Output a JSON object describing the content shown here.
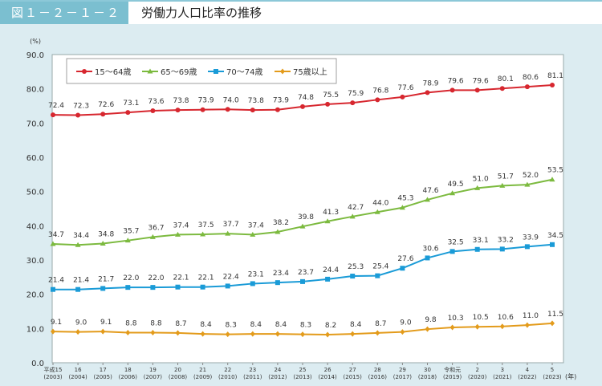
{
  "header": {
    "figure_number": "図１－２－１－２",
    "title": "労働力人口比率の推移"
  },
  "chart_data": {
    "type": "line",
    "title": "労働力人口比率の推移",
    "ylabel": "(%)",
    "xlabel": "(年)",
    "ylim": [
      0,
      90
    ],
    "yticks": [
      "0.0",
      "10.0",
      "20.0",
      "30.0",
      "40.0",
      "50.0",
      "60.0",
      "70.0",
      "80.0",
      "90.0"
    ],
    "grid": false,
    "legend": "top-left",
    "categories": [
      [
        "平成15",
        "(2003)"
      ],
      [
        "16",
        "(2004)"
      ],
      [
        "17",
        "(2005)"
      ],
      [
        "18",
        "(2006)"
      ],
      [
        "19",
        "(2007)"
      ],
      [
        "20",
        "(2008)"
      ],
      [
        "21",
        "(2009)"
      ],
      [
        "22",
        "(2010)"
      ],
      [
        "23",
        "(2011)"
      ],
      [
        "24",
        "(2012)"
      ],
      [
        "25",
        "(2013)"
      ],
      [
        "26",
        "(2014)"
      ],
      [
        "27",
        "(2015)"
      ],
      [
        "28",
        "(2016)"
      ],
      [
        "29",
        "(2017)"
      ],
      [
        "30",
        "(2018)"
      ],
      [
        "令和元",
        "(2019)"
      ],
      [
        "2",
        "(2020)"
      ],
      [
        "3",
        "(2021)"
      ],
      [
        "4",
        "(2022)"
      ],
      [
        "5",
        "(2023)"
      ]
    ],
    "series": [
      {
        "name": "15～64歳",
        "color": "#d7272f",
        "marker": "circle",
        "values": [
          72.4,
          72.3,
          72.6,
          73.1,
          73.6,
          73.8,
          73.9,
          74.0,
          73.8,
          73.9,
          74.8,
          75.5,
          75.9,
          76.8,
          77.6,
          78.9,
          79.6,
          79.6,
          80.1,
          80.6,
          81.1
        ]
      },
      {
        "name": "65～69歳",
        "color": "#7cba3f",
        "marker": "triangle",
        "values": [
          34.7,
          34.4,
          34.8,
          35.7,
          36.7,
          37.4,
          37.5,
          37.7,
          37.4,
          38.2,
          39.8,
          41.3,
          42.7,
          44.0,
          45.3,
          47.6,
          49.5,
          51.0,
          51.7,
          52.0,
          53.5
        ]
      },
      {
        "name": "70～74歳",
        "color": "#1a9bd7",
        "marker": "square",
        "values": [
          21.4,
          21.4,
          21.7,
          22.0,
          22.0,
          22.1,
          22.1,
          22.4,
          23.1,
          23.4,
          23.7,
          24.4,
          25.3,
          25.4,
          27.6,
          30.6,
          32.5,
          33.1,
          33.2,
          33.9,
          34.5
        ]
      },
      {
        "name": "75歳以上",
        "color": "#e39b1b",
        "marker": "diamond",
        "values": [
          9.1,
          9.0,
          9.1,
          8.8,
          8.8,
          8.7,
          8.4,
          8.3,
          8.4,
          8.4,
          8.3,
          8.2,
          8.4,
          8.7,
          9.0,
          9.8,
          10.3,
          10.5,
          10.6,
          11.0,
          11.5
        ]
      }
    ]
  }
}
